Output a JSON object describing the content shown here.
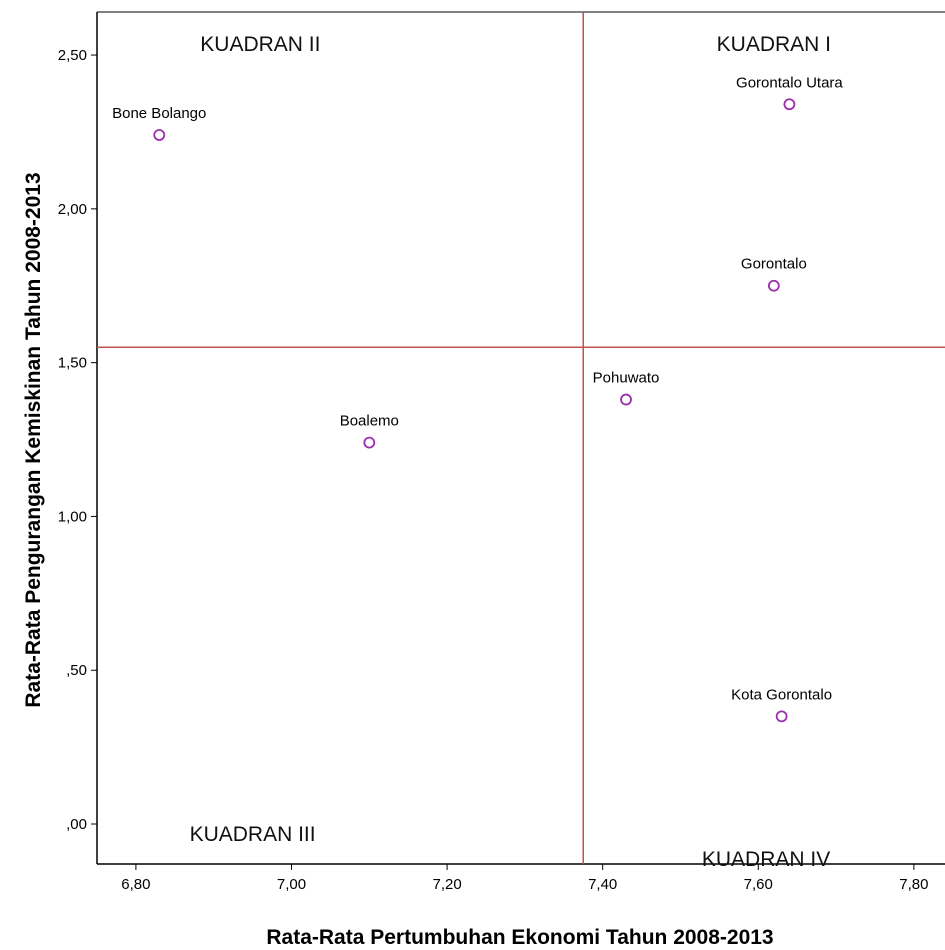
{
  "chart_data": {
    "type": "scatter",
    "title": "",
    "xlabel": "Rata-Rata Pertumbuhan Ekonomi Tahun 2008-2013",
    "ylabel": "Rata-Rata Pengurangan Kemiskinan Tahun 2008-2013",
    "xlim": [
      6.75,
      7.84
    ],
    "ylim": [
      -0.13,
      2.64
    ],
    "x_ticks": [
      6.8,
      7.0,
      7.2,
      7.4,
      7.6,
      7.8
    ],
    "x_tick_labels": [
      "6,80",
      "7,00",
      "7,20",
      "7,40",
      "7,60",
      "7,80"
    ],
    "y_ticks": [
      0,
      0.5,
      1.0,
      1.5,
      2.0,
      2.5
    ],
    "y_tick_labels": [
      ",00",
      ",50",
      "1,00",
      "1,50",
      "2,00",
      "2,50"
    ],
    "grid": false,
    "reference_lines": {
      "x": 7.375,
      "y": 1.55,
      "color": "#c0504d"
    },
    "marker_color": "#9b2fae",
    "points": [
      {
        "label": "Bone Bolango",
        "x": 6.83,
        "y": 2.24
      },
      {
        "label": "Gorontalo Utara",
        "x": 7.64,
        "y": 2.34
      },
      {
        "label": "Gorontalo",
        "x": 7.62,
        "y": 1.75
      },
      {
        "label": "Pohuwato",
        "x": 7.43,
        "y": 1.38
      },
      {
        "label": "Boalemo",
        "x": 7.1,
        "y": 1.24
      },
      {
        "label": "Kota Gorontalo",
        "x": 7.63,
        "y": 0.35
      }
    ],
    "annotations": [
      {
        "text": "KUADRAN I",
        "x": 7.62,
        "y": 2.54
      },
      {
        "text": "KUADRAN II",
        "x": 6.96,
        "y": 2.54
      },
      {
        "text": "KUADRAN III",
        "x": 6.95,
        "y": -0.03
      },
      {
        "text": "KUADRAN IV",
        "x": 7.61,
        "y": -0.11
      }
    ]
  }
}
